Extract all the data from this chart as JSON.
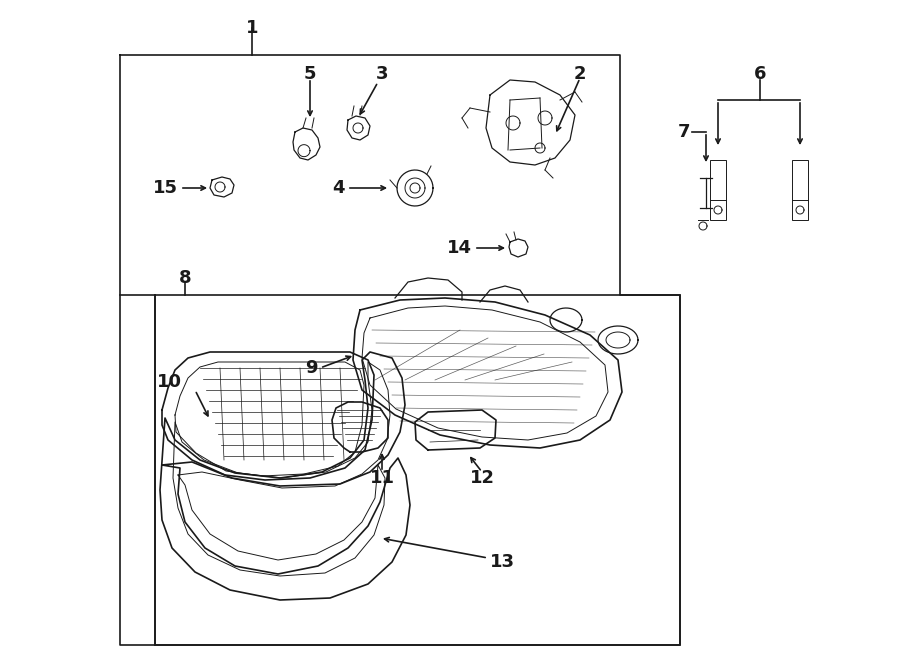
{
  "bg_color": "#ffffff",
  "line_color": "#1a1a1a",
  "fig_width": 9.0,
  "fig_height": 6.61,
  "dpi": 100,
  "label_fontsize": 13,
  "lw": 1.2,
  "lw_thin": 0.7,
  "lw_med": 0.9
}
